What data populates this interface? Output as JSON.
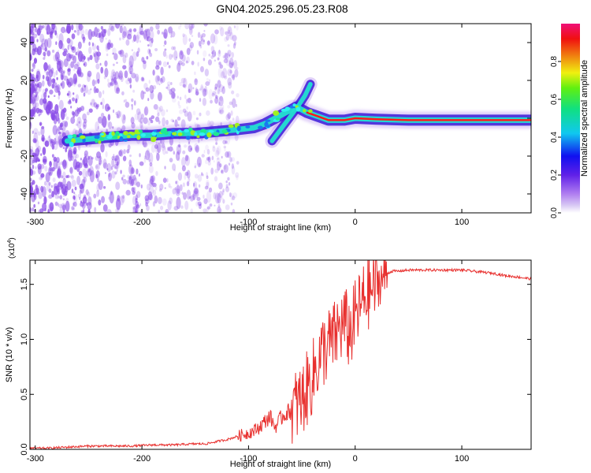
{
  "title": "GN04.2025.296.05.23.R08",
  "colors": {
    "snr_line": "#e8302e",
    "spectrum_core": "#ff1a1a",
    "spectrum_mid": "#22e0d0",
    "spectrum_low": "#3a1ad8",
    "scatter": "#8a4ce8",
    "axes": "#000000"
  },
  "chart_data": [
    {
      "type": "heatmap",
      "name": "spectrogram",
      "title": "GN04.2025.296.05.23.R08",
      "xlabel": "Height of straight line (km)",
      "ylabel": "Frequency (Hz)",
      "xlim": [
        -305,
        165
      ],
      "ylim": [
        -50,
        50
      ],
      "xticks": [
        -300,
        -200,
        -100,
        0,
        100
      ],
      "xtick_labels": [
        "-300",
        "-200",
        "-100",
        "0",
        "100"
      ],
      "yticks": [
        -40,
        -20,
        0,
        20,
        40
      ],
      "ytick_labels": [
        "-40",
        "-20",
        "0",
        "20",
        "40"
      ],
      "colorbar": {
        "label": "Normalized spectral amplitude",
        "range": [
          0,
          1
        ],
        "ticks": [
          0.0,
          0.2,
          0.4,
          0.6,
          0.8
        ],
        "tick_labels": [
          "0.0",
          "0.2",
          "0.4",
          "0.6",
          "0.8"
        ]
      },
      "ridge": [
        {
          "x": -270,
          "y": -12
        },
        {
          "x": -250,
          "y": -11
        },
        {
          "x": -230,
          "y": -10
        },
        {
          "x": -210,
          "y": -9
        },
        {
          "x": -190,
          "y": -9
        },
        {
          "x": -170,
          "y": -8
        },
        {
          "x": -150,
          "y": -8
        },
        {
          "x": -130,
          "y": -7
        },
        {
          "x": -110,
          "y": -6
        },
        {
          "x": -95,
          "y": -5
        },
        {
          "x": -85,
          "y": -3
        },
        {
          "x": -75,
          "y": 0
        },
        {
          "x": -65,
          "y": 3
        },
        {
          "x": -55,
          "y": 6
        },
        {
          "x": -45,
          "y": 3
        },
        {
          "x": -35,
          "y": 1
        },
        {
          "x": -25,
          "y": -1
        },
        {
          "x": -10,
          "y": -1
        },
        {
          "x": 0,
          "y": 0
        },
        {
          "x": 20,
          "y": -0.5
        },
        {
          "x": 50,
          "y": -1
        },
        {
          "x": 80,
          "y": -1
        },
        {
          "x": 110,
          "y": -1
        },
        {
          "x": 140,
          "y": -1
        },
        {
          "x": 165,
          "y": -1
        }
      ],
      "branch": [
        {
          "x": -78,
          "y": -12
        },
        {
          "x": -70,
          "y": -6
        },
        {
          "x": -62,
          "y": 0
        },
        {
          "x": -54,
          "y": 6
        },
        {
          "x": -47,
          "y": 12
        },
        {
          "x": -42,
          "y": 18
        }
      ]
    },
    {
      "type": "line",
      "name": "snr",
      "xlabel": "Height of straight line (km)",
      "ylabel": "SNR (10 * v/v)",
      "y_multiplier": "(x10",
      "y_exponent": "4",
      "xlim": [
        -305,
        165
      ],
      "ylim": [
        0,
        1.72
      ],
      "xticks": [
        -300,
        -200,
        -100,
        0,
        100
      ],
      "xtick_labels": [
        "-300",
        "-200",
        "-100",
        "0",
        "100"
      ],
      "yticks": [
        0.0,
        0.5,
        1.0,
        1.5
      ],
      "ytick_labels": [
        "0.0",
        "0.5",
        "1.0",
        "1.5"
      ],
      "series": [
        {
          "name": "SNR",
          "x": [
            -305,
            -290,
            -270,
            -250,
            -230,
            -210,
            -190,
            -170,
            -150,
            -140,
            -130,
            -120,
            -110,
            -100,
            -95,
            -90,
            -85,
            -80,
            -75,
            -70,
            -65,
            -60,
            -55,
            -50,
            -45,
            -40,
            -35,
            -30,
            -25,
            -20,
            -15,
            -10,
            -5,
            0,
            5,
            10,
            15,
            20,
            25,
            30,
            35,
            40,
            50,
            60,
            70,
            80,
            90,
            100,
            110,
            120,
            130,
            140,
            150,
            165
          ],
          "values": [
            0.01,
            0.01,
            0.02,
            0.03,
            0.03,
            0.03,
            0.04,
            0.04,
            0.05,
            0.05,
            0.07,
            0.09,
            0.12,
            0.15,
            0.17,
            0.2,
            0.25,
            0.3,
            0.2,
            0.28,
            0.33,
            0.35,
            0.4,
            0.45,
            0.55,
            0.65,
            0.8,
            0.9,
            0.95,
            1.0,
            1.1,
            1.15,
            1.05,
            1.2,
            1.3,
            1.4,
            1.45,
            1.5,
            1.55,
            1.6,
            1.62,
            1.62,
            1.63,
            1.63,
            1.63,
            1.63,
            1.63,
            1.63,
            1.62,
            1.61,
            1.6,
            1.58,
            1.57,
            1.55
          ]
        }
      ]
    }
  ]
}
